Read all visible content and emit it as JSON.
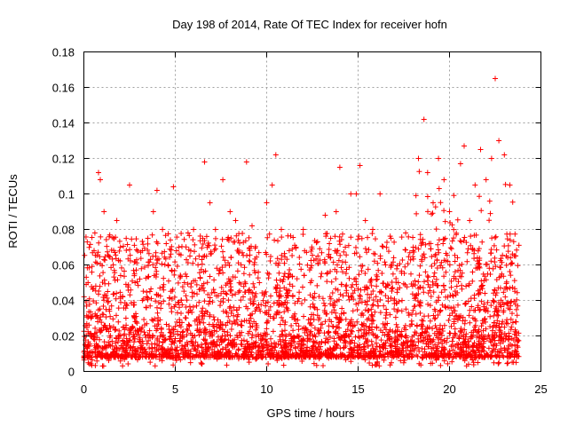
{
  "chart_data": {
    "type": "scatter",
    "title": "Day 198 of 2014, Rate Of TEC Index for receiver hofn",
    "xlabel": "GPS time / hours",
    "ylabel": "ROTI / TECUs",
    "xlim": [
      0,
      25
    ],
    "ylim": [
      0,
      0.18
    ],
    "xticks": [
      0,
      5,
      10,
      15,
      20,
      25
    ],
    "xtick_labels": [
      "0",
      "5",
      "10",
      "15",
      "20",
      "25"
    ],
    "yticks": [
      0,
      0.02,
      0.04,
      0.06,
      0.08,
      0.1,
      0.12,
      0.14,
      0.16,
      0.18
    ],
    "ytick_labels": [
      "0",
      "0.02",
      "0.04",
      "0.06",
      "0.08",
      "0.1",
      "0.12",
      "0.14",
      "0.16",
      "0.18"
    ],
    "grid": true,
    "marker": "plus",
    "color": "#ff0000",
    "x_data_range": [
      0,
      23.8
    ],
    "points": [
      [
        0.2,
        0.011
      ],
      [
        0.4,
        0.03
      ],
      [
        0.6,
        0.078
      ],
      [
        0.8,
        0.112
      ],
      [
        0.9,
        0.108
      ],
      [
        1.1,
        0.09
      ],
      [
        1.3,
        0.045
      ],
      [
        1.6,
        0.06
      ],
      [
        1.8,
        0.085
      ],
      [
        2.0,
        0.07
      ],
      [
        2.3,
        0.03
      ],
      [
        2.5,
        0.105
      ],
      [
        2.8,
        0.05
      ],
      [
        3.2,
        0.04
      ],
      [
        3.5,
        0.075
      ],
      [
        3.8,
        0.09
      ],
      [
        4.0,
        0.102
      ],
      [
        4.3,
        0.08
      ],
      [
        4.6,
        0.06
      ],
      [
        4.9,
        0.104
      ],
      [
        5.2,
        0.07
      ],
      [
        5.5,
        0.05
      ],
      [
        5.8,
        0.065
      ],
      [
        6.0,
        0.08
      ],
      [
        6.3,
        0.065
      ],
      [
        6.6,
        0.118
      ],
      [
        6.9,
        0.095
      ],
      [
        7.2,
        0.08
      ],
      [
        7.6,
        0.108
      ],
      [
        8.0,
        0.09
      ],
      [
        8.3,
        0.085
      ],
      [
        8.6,
        0.06
      ],
      [
        8.9,
        0.118
      ],
      [
        9.2,
        0.082
      ],
      [
        9.6,
        0.05
      ],
      [
        10.0,
        0.095
      ],
      [
        10.3,
        0.105
      ],
      [
        10.5,
        0.122
      ],
      [
        10.8,
        0.08
      ],
      [
        11.2,
        0.055
      ],
      [
        11.6,
        0.07
      ],
      [
        12.0,
        0.08
      ],
      [
        12.4,
        0.05
      ],
      [
        12.8,
        0.065
      ],
      [
        13.2,
        0.088
      ],
      [
        13.5,
        0.075
      ],
      [
        13.8,
        0.09
      ],
      [
        14.0,
        0.115
      ],
      [
        14.3,
        0.07
      ],
      [
        14.6,
        0.1
      ],
      [
        14.9,
        0.1
      ],
      [
        15.1,
        0.116
      ],
      [
        15.4,
        0.085
      ],
      [
        15.8,
        0.08
      ],
      [
        16.2,
        0.1
      ],
      [
        16.5,
        0.06
      ],
      [
        16.8,
        0.075
      ],
      [
        17.2,
        0.05
      ],
      [
        17.6,
        0.078
      ],
      [
        18.0,
        0.068
      ],
      [
        18.3,
        0.12
      ],
      [
        18.6,
        0.142
      ],
      [
        18.8,
        0.112
      ],
      [
        19.1,
        0.095
      ],
      [
        19.4,
        0.12
      ],
      [
        19.7,
        0.108
      ],
      [
        20.0,
        0.09
      ],
      [
        20.3,
        0.062
      ],
      [
        20.6,
        0.117
      ],
      [
        20.8,
        0.127
      ],
      [
        21.1,
        0.085
      ],
      [
        21.4,
        0.105
      ],
      [
        21.7,
        0.125
      ],
      [
        22.0,
        0.108
      ],
      [
        22.3,
        0.12
      ],
      [
        22.5,
        0.165
      ],
      [
        22.7,
        0.13
      ],
      [
        23.0,
        0.122
      ],
      [
        23.3,
        0.105
      ],
      [
        23.6,
        0.065
      ]
    ]
  }
}
